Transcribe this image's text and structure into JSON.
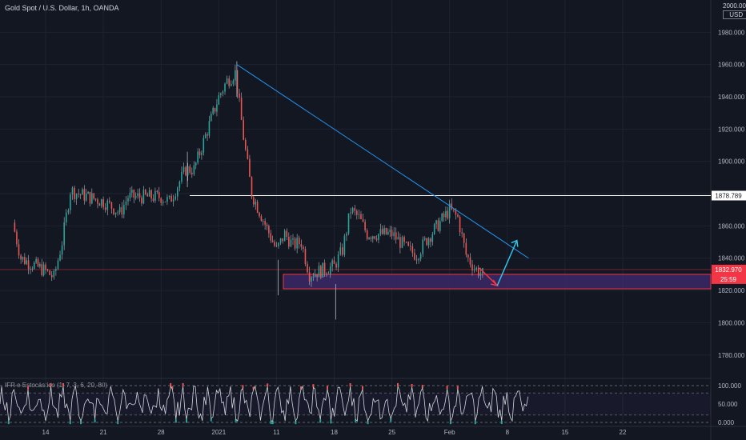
{
  "header": {
    "title": "Gold Spot / U.S. Dollar, 1h, OANDA"
  },
  "axis_currency": {
    "top_tick": "2000.000",
    "currency": "USD"
  },
  "oscillator": {
    "label": "IFR e Estocástico (1, 7, 3, 6, 20, 80)"
  },
  "colors": {
    "up": "#26a69a",
    "down": "#ef5350",
    "wick": "#b2b5be",
    "trendline": "#2196f3",
    "level": "#ffffff",
    "zone_fill": "#3d2a6b",
    "zone_border": "#f23645",
    "arrow_down": "#f23645",
    "arrow_up": "#2ec4e6",
    "grid": "#1f2330",
    "bg": "#131722"
  },
  "chart_data": {
    "type": "candlestick",
    "title": "Gold Spot / U.S. Dollar, 1h, OANDA",
    "xlabel": "",
    "ylabel": "",
    "x_ticks": [
      "14",
      "21",
      "28",
      "2021",
      "11",
      "18",
      "25",
      "Feb",
      "8",
      "15",
      "22"
    ],
    "y_ticks": [
      "1780.000",
      "1800.000",
      "1820.000",
      "1840.000",
      "1860.000",
      "1880.000",
      "1900.000",
      "1920.000",
      "1940.000",
      "1960.000",
      "1980.000",
      "2000.000"
    ],
    "ylim": [
      1766,
      2000
    ],
    "price_path": [
      [
        "Dec 10",
        1862
      ],
      [
        "Dec 11",
        1840
      ],
      [
        "Dec 14",
        1832
      ],
      [
        "Dec 15",
        1828
      ],
      [
        "Dec 16",
        1850
      ],
      [
        "Dec 17",
        1882
      ],
      [
        "Dec 18",
        1880
      ],
      [
        "Dec 21",
        1875
      ],
      [
        "Dec 22",
        1872
      ],
      [
        "Dec 23",
        1868
      ],
      [
        "Dec 24",
        1878
      ],
      [
        "Dec 28",
        1878
      ],
      [
        "Dec 29",
        1875
      ],
      [
        "Dec 30",
        1885
      ],
      [
        "Dec 31",
        1895
      ],
      [
        "Jan 1",
        1895
      ],
      [
        "Jan 4",
        1940
      ],
      [
        "Jan 5",
        1950
      ],
      [
        "Jan 6",
        1955
      ],
      [
        "Jan 7",
        1915
      ],
      [
        "Jan 8",
        1880
      ],
      [
        "Jan 11",
        1845
      ],
      [
        "Jan 12",
        1855
      ],
      [
        "Jan 13",
        1848
      ],
      [
        "Jan 14",
        1850
      ],
      [
        "Jan 15",
        1830
      ],
      [
        "Jan 18",
        1835
      ],
      [
        "Jan 19",
        1845
      ],
      [
        "Jan 20",
        1870
      ],
      [
        "Jan 21",
        1865
      ],
      [
        "Jan 22",
        1855
      ],
      [
        "Jan 25",
        1855
      ],
      [
        "Jan 26",
        1850
      ],
      [
        "Jan 27",
        1845
      ],
      [
        "Jan 28",
        1842
      ],
      [
        "Jan 29",
        1850
      ],
      [
        "Feb 1",
        1870
      ],
      [
        "Feb 2",
        1865
      ],
      [
        "Feb 3",
        1842
      ],
      [
        "Feb 4",
        1834
      ],
      [
        "Feb 5",
        1830
      ]
    ],
    "annotations": {
      "level_label": "1878.789",
      "price_label": "1832.970",
      "timer_label": "25:59",
      "trendline": {
        "from": [
          "Jan 6",
          1960
        ],
        "to": [
          "Feb 10",
          1840
        ]
      },
      "horizontal_level": 1878.789,
      "support_zone": [
        1821,
        1830
      ],
      "current_price": 1832.97,
      "projection": [
        [
          "Feb 5",
          1833
        ],
        [
          "Feb 6",
          1823
        ],
        [
          "Feb 8",
          1851
        ]
      ]
    },
    "oscillator": {
      "label": "IFR e Estocástico (1, 7, 3, 6, 20, 80)",
      "y_ticks": [
        "100.000",
        "50.000",
        "0.000"
      ],
      "ylim": [
        0,
        100
      ],
      "levels": [
        80,
        20
      ]
    },
    "grid": true,
    "legend": "none"
  }
}
